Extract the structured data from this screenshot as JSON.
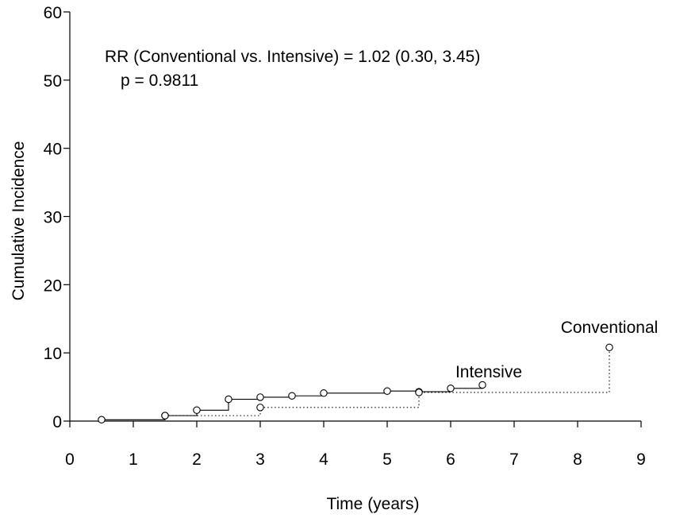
{
  "chart_data": {
    "type": "line",
    "xlabel": "Time (years)",
    "ylabel": "Cumulative Incidence",
    "xlim": [
      0,
      9
    ],
    "ylim": [
      0,
      60
    ],
    "xticks": [
      "0",
      "1",
      "2",
      "3",
      "4",
      "5",
      "6",
      "7",
      "8",
      "9"
    ],
    "yticks": [
      "0",
      "10",
      "20",
      "30",
      "40",
      "50",
      "60"
    ],
    "grid": false,
    "annotations": [
      "RR (Conventional vs. Intensive) = 1.02 (0.30, 3.45)",
      "p = 0.9811"
    ],
    "series": [
      {
        "name": "Intensive",
        "style": "solid",
        "step": true,
        "x": [
          0.5,
          1.5,
          2.0,
          2.5,
          3.0,
          3.5,
          4.0,
          5.0,
          5.5,
          6.0,
          6.5
        ],
        "y": [
          0.2,
          0.8,
          1.6,
          3.2,
          3.5,
          3.7,
          4.1,
          4.4,
          4.3,
          4.8,
          5.3
        ]
      },
      {
        "name": "Conventional",
        "style": "dotted",
        "step": true,
        "x": [
          1.5,
          3.0,
          5.5,
          8.5
        ],
        "y": [
          0.8,
          2.0,
          4.2,
          10.8
        ]
      }
    ]
  }
}
